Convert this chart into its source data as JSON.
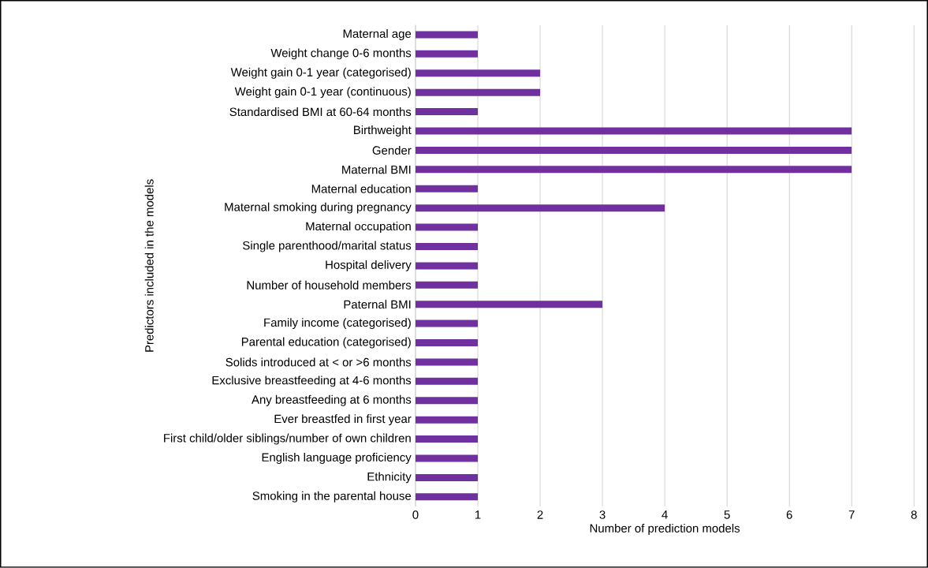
{
  "chart_data": {
    "type": "bar",
    "orientation": "horizontal",
    "xlabel": "Number of prediction models",
    "ylabel": "Predictors included in the models",
    "categories": [
      "Maternal age",
      "Weight change 0-6 months",
      "Weight gain 0-1 year (categorised)",
      "Weight gain 0-1 year (continuous)",
      "Standardised BMI at 60-64 months",
      "Birthweight",
      "Gender",
      "Maternal BMI",
      "Maternal education",
      "Maternal smoking during pregnancy",
      "Maternal occupation",
      "Single parenthood/marital status",
      "Hospital delivery",
      "Number of household members",
      "Paternal BMI",
      "Family income (categorised)",
      "Parental education (categorised)",
      "Solids introduced at < or >6 months",
      "Exclusive breastfeeding at 4-6 months",
      "Any breastfeeding at 6 months",
      "Ever breastfed in first year",
      "First child/older siblings/number of own children",
      "English language proficiency",
      "Ethnicity",
      "Smoking in the parental house"
    ],
    "values": [
      1,
      1,
      2,
      2,
      1,
      7,
      7,
      7,
      1,
      4,
      1,
      1,
      1,
      1,
      3,
      1,
      1,
      1,
      1,
      1,
      1,
      1,
      1,
      1,
      1
    ],
    "color": "#7030a0",
    "xlim": [
      0,
      8
    ],
    "xticks": [
      0,
      1,
      2,
      3,
      4,
      5,
      6,
      7,
      8
    ],
    "grid": "x"
  }
}
